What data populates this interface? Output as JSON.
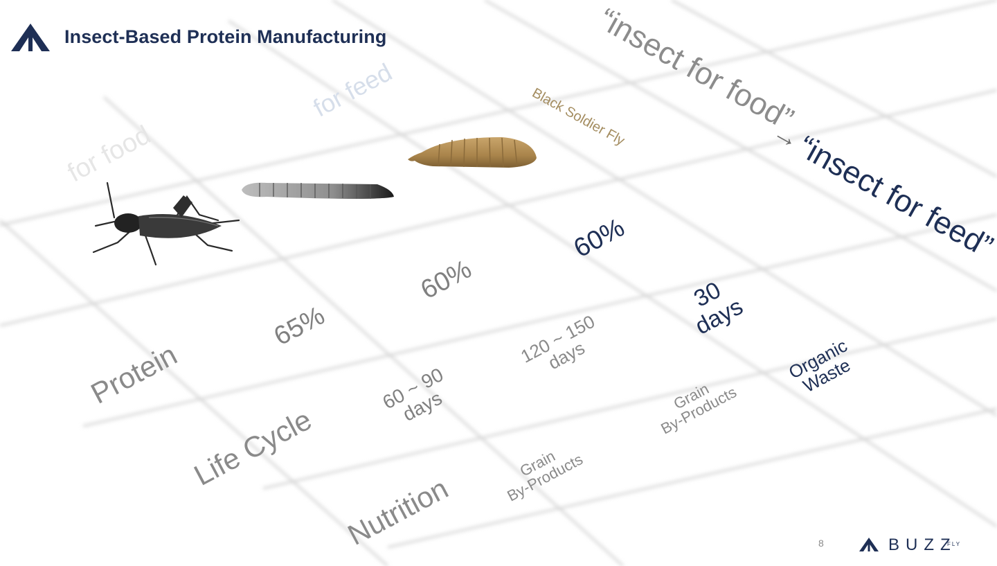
{
  "header": {
    "title": "Insect-Based Protein Manufacturing",
    "logo_icon": "buzzfly-chevron-logo"
  },
  "columns": {
    "food": "for food",
    "feed": "for feed",
    "bsf": "Black Soldier Fly"
  },
  "headline": {
    "from": "“insect for food”",
    "arrow": "→",
    "to": "“insect for feed”"
  },
  "rows": {
    "protein": "Protein",
    "life_cycle": "Life Cycle",
    "nutrition": "Nutrition"
  },
  "protein": {
    "cricket": "65%",
    "mealworm": "60%",
    "bsf": "60%"
  },
  "life_cycle": {
    "cricket": [
      "60 ~ 90",
      "days"
    ],
    "mealworm": [
      "120 ~ 150",
      "days"
    ],
    "bsf": [
      "30",
      "days"
    ]
  },
  "nutrition": {
    "cricket": [
      "Grain",
      "By-Products"
    ],
    "mealworm": [
      "Grain",
      "By-Products"
    ],
    "bsf": [
      "Organic",
      "Waste"
    ]
  },
  "footer": {
    "page": "8",
    "brand": "BUZZ",
    "brand_sub": "FLY"
  },
  "colors": {
    "navy": "#1e2f55",
    "gray": "#8a8a8a",
    "bsf_label": "#a48d60"
  }
}
